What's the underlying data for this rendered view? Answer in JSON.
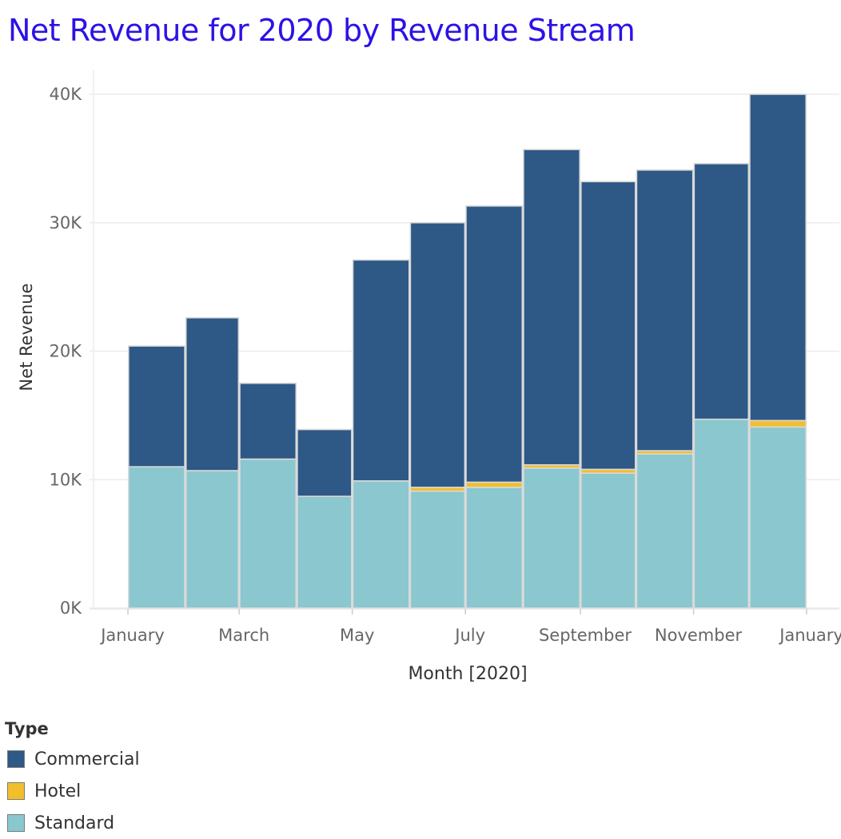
{
  "colors": {
    "title": "#2c12e6",
    "commercial": "#2e5885",
    "hotel": "#f2be2c",
    "standard": "#8bc7cf",
    "grid": "#ececec",
    "bar_outline": "#d9d9d9"
  },
  "chart_data": {
    "type": "bar",
    "stacked": true,
    "title": "Net Revenue for 2020 by Revenue Stream",
    "xlabel": "Month [2020]",
    "ylabel": "Net Revenue",
    "ylim": [
      0,
      40000
    ],
    "yticks": [
      0,
      10000,
      20000,
      30000,
      40000
    ],
    "ytick_labels": [
      "0K",
      "10K",
      "20K",
      "30K",
      "40K"
    ],
    "x_date_range": [
      "2020-01-01",
      "2021-01-01"
    ],
    "xtick_dates": [
      "2020-01-01",
      "2020-03-01",
      "2020-05-01",
      "2020-07-01",
      "2020-09-01",
      "2020-11-01",
      "2021-01-01"
    ],
    "xtick_labels": [
      "January",
      "March",
      "May",
      "July",
      "September",
      "November",
      "January"
    ],
    "categories": [
      "2020-01",
      "2020-02",
      "2020-03",
      "2020-04",
      "2020-05",
      "2020-06",
      "2020-07",
      "2020-08",
      "2020-09",
      "2020-10",
      "2020-11",
      "2020-12"
    ],
    "series": [
      {
        "name": "Standard",
        "color_key": "standard",
        "values": [
          11000,
          10700,
          11600,
          8700,
          9900,
          9100,
          9400,
          10900,
          10500,
          12000,
          14700,
          14100
        ]
      },
      {
        "name": "Hotel",
        "color_key": "hotel",
        "values": [
          0,
          0,
          0,
          0,
          0,
          300,
          400,
          250,
          300,
          250,
          0,
          500
        ]
      },
      {
        "name": "Commercial",
        "color_key": "commercial",
        "values": [
          9400,
          11900,
          5900,
          5200,
          17200,
          20600,
          21500,
          24550,
          22400,
          21850,
          19900,
          25400
        ]
      }
    ],
    "legend": {
      "title": "Type",
      "position": "bottom-left",
      "items": [
        {
          "label": "Commercial",
          "color_key": "commercial"
        },
        {
          "label": "Hotel",
          "color_key": "hotel"
        },
        {
          "label": "Standard",
          "color_key": "standard"
        }
      ]
    },
    "grid": true
  }
}
